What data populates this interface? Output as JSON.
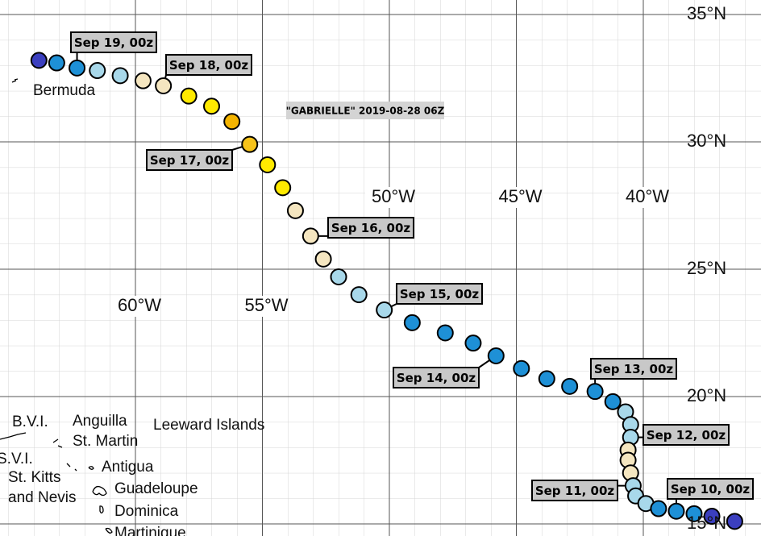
{
  "title": "\"GABRIELLE\" 2019-08-28 06Z",
  "grid": {
    "lat": [
      {
        "value": 35,
        "label": "35°N"
      },
      {
        "value": 30,
        "label": "30°N"
      },
      {
        "value": 25,
        "label": "25°N"
      },
      {
        "value": 20,
        "label": "20°N"
      },
      {
        "value": 15,
        "label": "15°N"
      }
    ],
    "lon": [
      {
        "value": -60,
        "label": "60°W"
      },
      {
        "value": -55,
        "label": "55°W"
      },
      {
        "value": -50,
        "label": "50°W"
      },
      {
        "value": -45,
        "label": "45°W"
      },
      {
        "value": -40,
        "label": "40°W"
      }
    ]
  },
  "places": [
    "Bermuda",
    "Leeward Islands",
    "B.V.I.",
    "Anguilla",
    "St. Martin",
    "S.V.I.",
    "St. Kitts",
    "and Nevis",
    "Antigua",
    "Guadeloupe",
    "Dominica",
    "Martinique"
  ],
  "track": {
    "points": [
      {
        "lon": -63.8,
        "lat": 33.2,
        "color": "#3b3fbf"
      },
      {
        "lon": -63.1,
        "lat": 33.1,
        "color": "#1e90d6"
      },
      {
        "lon": -62.3,
        "lat": 32.9,
        "color": "#1e90d6",
        "label": "Sep 19, 00z"
      },
      {
        "lon": -61.5,
        "lat": 32.8,
        "color": "#a8d8ea"
      },
      {
        "lon": -60.6,
        "lat": 32.6,
        "color": "#a8d8ea"
      },
      {
        "lon": -59.7,
        "lat": 32.4,
        "color": "#f5e6c0"
      },
      {
        "lon": -58.9,
        "lat": 32.2,
        "color": "#f5e6c0",
        "label": "Sep 18, 00z"
      },
      {
        "lon": -57.9,
        "lat": 31.8,
        "color": "#ffea00"
      },
      {
        "lon": -57.0,
        "lat": 31.4,
        "color": "#ffea00"
      },
      {
        "lon": -56.2,
        "lat": 30.8,
        "color": "#f4b400"
      },
      {
        "lon": -55.5,
        "lat": 29.9,
        "color": "#f7c31a",
        "label": "Sep 17, 00z"
      },
      {
        "lon": -54.8,
        "lat": 29.1,
        "color": "#ffea00"
      },
      {
        "lon": -54.2,
        "lat": 28.2,
        "color": "#ffea00"
      },
      {
        "lon": -53.7,
        "lat": 27.3,
        "color": "#f5e6c0"
      },
      {
        "lon": -53.1,
        "lat": 26.3,
        "color": "#f5e6c0",
        "label": "Sep 16, 00z"
      },
      {
        "lon": -52.6,
        "lat": 25.4,
        "color": "#f5e6c0"
      },
      {
        "lon": -52.0,
        "lat": 24.7,
        "color": "#a8d8ea"
      },
      {
        "lon": -51.2,
        "lat": 24.0,
        "color": "#a8d8ea"
      },
      {
        "lon": -50.2,
        "lat": 23.4,
        "color": "#a8d8ea",
        "label": "Sep 15, 00z"
      },
      {
        "lon": -49.1,
        "lat": 22.9,
        "color": "#1e90d6"
      },
      {
        "lon": -47.8,
        "lat": 22.5,
        "color": "#1e90d6"
      },
      {
        "lon": -46.7,
        "lat": 22.1,
        "color": "#1e90d6"
      },
      {
        "lon": -45.8,
        "lat": 21.6,
        "color": "#1e90d6",
        "label": "Sep 14, 00z"
      },
      {
        "lon": -44.8,
        "lat": 21.1,
        "color": "#1e90d6"
      },
      {
        "lon": -43.8,
        "lat": 20.7,
        "color": "#1e90d6"
      },
      {
        "lon": -42.9,
        "lat": 20.4,
        "color": "#1e90d6"
      },
      {
        "lon": -41.9,
        "lat": 20.2,
        "color": "#1e90d6",
        "label": "Sep 13, 00z"
      },
      {
        "lon": -41.2,
        "lat": 19.8,
        "color": "#1e90d6"
      },
      {
        "lon": -40.7,
        "lat": 19.4,
        "color": "#a8d8ea"
      },
      {
        "lon": -40.5,
        "lat": 18.9,
        "color": "#a8d8ea"
      },
      {
        "lon": -40.5,
        "lat": 18.4,
        "color": "#a8d8ea",
        "label": "Sep 12, 00z"
      },
      {
        "lon": -40.6,
        "lat": 17.9,
        "color": "#f5e6c0"
      },
      {
        "lon": -40.6,
        "lat": 17.5,
        "color": "#f5e6c0"
      },
      {
        "lon": -40.5,
        "lat": 17.0,
        "color": "#f5e6c0"
      },
      {
        "lon": -40.4,
        "lat": 16.5,
        "color": "#a8d8ea",
        "label": "Sep 11, 00z"
      },
      {
        "lon": -40.3,
        "lat": 16.1,
        "color": "#a8d8ea"
      },
      {
        "lon": -39.9,
        "lat": 15.8,
        "color": "#a8d8ea"
      },
      {
        "lon": -39.4,
        "lat": 15.6,
        "color": "#1e90d6"
      },
      {
        "lon": -38.7,
        "lat": 15.5,
        "color": "#1e90d6",
        "label": "Sep 10, 00z"
      },
      {
        "lon": -38.0,
        "lat": 15.4,
        "color": "#1e90d6"
      },
      {
        "lon": -37.3,
        "lat": 15.3,
        "color": "#3b3fbf"
      },
      {
        "lon": -36.4,
        "lat": 15.1,
        "color": "#3b3fbf"
      }
    ]
  }
}
